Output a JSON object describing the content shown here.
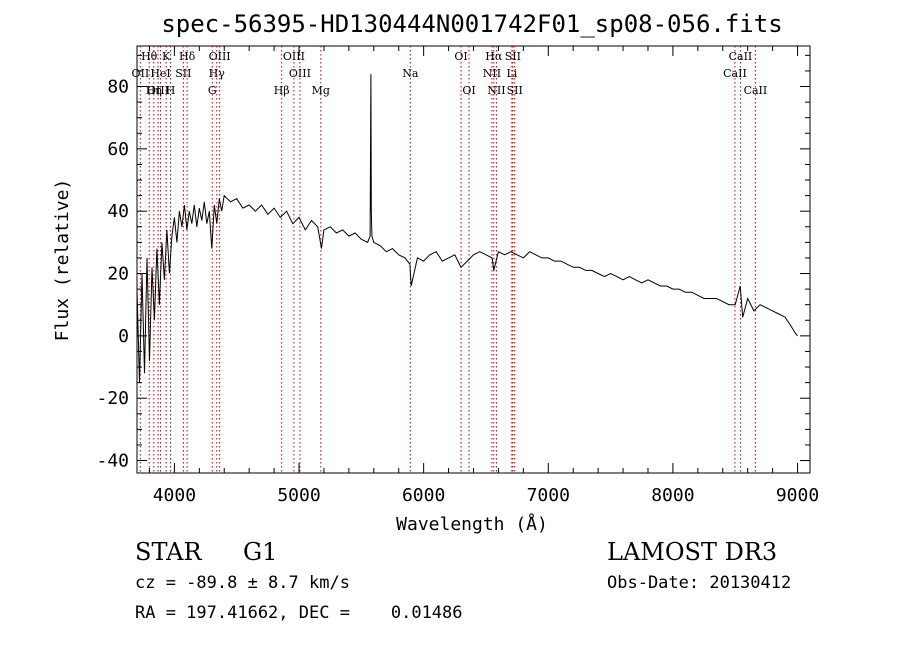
{
  "chart_data": {
    "type": "line",
    "title": "spec-56395-HD130444N001742F01_sp08-056.fits",
    "xlabel": "Wavelength (Å)",
    "ylabel": "Flux (relative)",
    "xlim": [
      3700,
      9100
    ],
    "ylim": [
      -44,
      93
    ],
    "x_ticks": [
      4000,
      5000,
      6000,
      7000,
      8000,
      9000
    ],
    "y_ticks": [
      -40,
      -20,
      0,
      20,
      40,
      60,
      80
    ],
    "grid": false,
    "series": [
      {
        "x": [
          3700,
          3720,
          3740,
          3760,
          3780,
          3800,
          3820,
          3840,
          3860,
          3880,
          3900,
          3920,
          3940,
          3960,
          3980,
          4000,
          4020,
          4040,
          4060,
          4080,
          4100,
          4120,
          4140,
          4160,
          4180,
          4200,
          4220,
          4240,
          4260,
          4280,
          4300,
          4320,
          4340,
          4360,
          4380,
          4400,
          4450,
          4500,
          4550,
          4600,
          4650,
          4700,
          4750,
          4800,
          4850,
          4900,
          4950,
          5000,
          5050,
          5100,
          5150,
          5180,
          5200,
          5250,
          5300,
          5350,
          5400,
          5450,
          5500,
          5550,
          5570,
          5577,
          5580,
          5585,
          5600,
          5650,
          5700,
          5750,
          5800,
          5850,
          5890,
          5900,
          5950,
          6000,
          6050,
          6100,
          6150,
          6200,
          6250,
          6300,
          6350,
          6400,
          6450,
          6500,
          6550,
          6563,
          6600,
          6650,
          6700,
          6750,
          6800,
          6850,
          6900,
          6950,
          7000,
          7050,
          7100,
          7150,
          7200,
          7250,
          7300,
          7350,
          7400,
          7450,
          7500,
          7550,
          7600,
          7650,
          7700,
          7750,
          7800,
          7850,
          7900,
          7950,
          8000,
          8050,
          8100,
          8150,
          8200,
          8250,
          8300,
          8350,
          8400,
          8450,
          8500,
          8540,
          8560,
          8600,
          8650,
          8700,
          8750,
          8800,
          8850,
          8900,
          8950,
          8980,
          9000
        ],
        "y": [
          15,
          -15,
          20,
          -12,
          25,
          -8,
          22,
          5,
          28,
          10,
          30,
          18,
          34,
          20,
          32,
          38,
          30,
          40,
          35,
          42,
          34,
          40,
          36,
          42,
          35,
          41,
          37,
          43,
          36,
          40,
          28,
          42,
          36,
          44,
          40,
          45,
          43,
          44,
          41,
          42,
          40,
          42,
          39,
          41,
          38,
          40,
          36,
          38,
          34,
          37,
          35,
          28,
          34,
          35,
          33,
          34,
          32,
          33,
          31,
          30,
          32,
          84,
          40,
          32,
          30,
          29,
          27,
          28,
          26,
          25,
          23,
          16,
          25,
          24,
          26,
          27,
          24,
          25,
          26,
          22,
          24,
          26,
          27,
          26,
          25,
          21,
          27,
          26,
          27,
          26,
          25,
          27,
          26,
          25,
          25,
          24,
          24,
          23,
          22,
          22,
          21,
          21,
          20,
          19,
          20,
          19,
          18,
          19,
          18,
          17,
          18,
          17,
          16,
          16,
          15,
          15,
          14,
          14,
          13,
          12,
          12,
          12,
          11,
          10,
          10,
          16,
          6,
          12,
          8,
          10,
          9,
          8,
          7,
          6,
          3,
          1,
          0
        ]
      }
    ],
    "lines": [
      {
        "label": "Hθ",
        "x": 3798,
        "row": 0
      },
      {
        "label": "K",
        "x": 3934,
        "row": 0
      },
      {
        "label": "Hδ",
        "x": 4102,
        "row": 0
      },
      {
        "label": "OIII",
        "x": 4363,
        "row": 0
      },
      {
        "label": "OIII",
        "x": 4959,
        "row": 0
      },
      {
        "label": "OII",
        "x": 3727,
        "row": 1
      },
      {
        "label": "HeI",
        "x": 3889,
        "row": 1
      },
      {
        "label": "SII",
        "x": 4072,
        "row": 1
      },
      {
        "label": "Hγ",
        "x": 4340,
        "row": 1
      },
      {
        "label": "OIII",
        "x": 5007,
        "row": 1
      },
      {
        "label": "OIII",
        "x": 3869,
        "row": 2
      },
      {
        "label": "Hη",
        "x": 3835,
        "row": 2
      },
      {
        "label": "H",
        "x": 3969,
        "row": 2
      },
      {
        "label": "G",
        "x": 4304,
        "row": 2
      },
      {
        "label": "Hβ",
        "x": 4861,
        "row": 2
      },
      {
        "label": "Mg",
        "x": 5175,
        "row": 2
      },
      {
        "label": "Na",
        "x": 5893,
        "row": 1
      },
      {
        "label": "OI",
        "x": 6300,
        "row": 0
      },
      {
        "label": "OI",
        "x": 6364,
        "row": 2
      },
      {
        "label": "Hα",
        "x": 6563,
        "row": 0
      },
      {
        "label": "SII",
        "x": 6716,
        "row": 0
      },
      {
        "label": "NII",
        "x": 6548,
        "row": 1
      },
      {
        "label": "Li",
        "x": 6708,
        "row": 1
      },
      {
        "label": "NII",
        "x": 6584,
        "row": 2
      },
      {
        "label": "SII",
        "x": 6731,
        "row": 2
      },
      {
        "label": "CaII",
        "x": 8542,
        "row": 0
      },
      {
        "label": "CaII",
        "x": 8498,
        "row": 1
      },
      {
        "label": "CaII",
        "x": 8662,
        "row": 2
      }
    ]
  },
  "info": {
    "class": "STAR",
    "subclass": "G1",
    "survey": "LAMOST DR3",
    "redshift": "cz = -89.8 ± 8.7 km/s",
    "obs_date": "Obs-Date: 20130412",
    "coords": "RA = 197.41662, DEC =    0.01486"
  }
}
